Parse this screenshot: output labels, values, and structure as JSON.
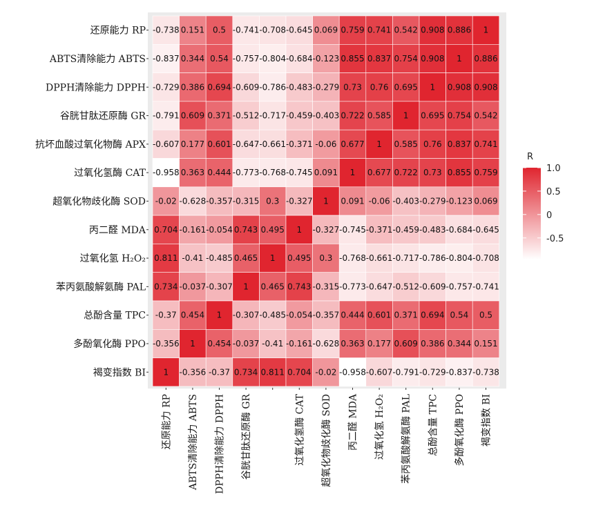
{
  "chart_data": {
    "type": "heatmap",
    "row_labels": [
      "还原能力 RP",
      "ABTS清除能力 ABTS",
      "DPPH清除能力 DPPH",
      "谷胱甘肽还原酶 GR",
      "抗坏血酸过氧化物酶 APX",
      "过氧化氢酶 CAT",
      "超氧化物歧化酶 SOD",
      "丙二醛 MDA",
      "过氧化氢 H₂O₂",
      "苯丙氨酸解氨酶 PAL",
      "总酚含量 TPC",
      "多酚氧化酶 PPO",
      "褐变指数 BI"
    ],
    "col_labels": [
      "还原能力 RP",
      "ABTS清除能力 ABTS",
      "DPPH清除能力 DPPH",
      "谷胱甘肽还原酶 GR",
      "",
      "过氧化氢酶 CAT",
      "超氧化物歧化酶 SOD",
      "丙二醛 MDA",
      "过氧化氢 H₂O₂",
      "苯丙氨酸解氨酶 PAL",
      "总酚含量 TPC",
      "多酚氧化酶 PPO",
      "褐变指数 BI"
    ],
    "cell_labels": [
      [
        "-0.738",
        "0.151",
        "0.5",
        "-0.741",
        "-0.708",
        "-0.645",
        "0.069",
        "0.759",
        "0.741",
        "0.542",
        "0.908",
        "0.886",
        "1"
      ],
      [
        "-0.837",
        "0.344",
        "0.54",
        "-0.757",
        "-0.804",
        "-0.684",
        "-0.123",
        "0.855",
        "0.837",
        "0.754",
        "0.908",
        "1",
        "0.886"
      ],
      [
        "-0.729",
        "0.386",
        "0.694",
        "-0.609",
        "-0.786",
        "-0.483",
        "-0.279",
        "0.73",
        "0.76",
        "0.695",
        "1",
        "0.908",
        "0.908"
      ],
      [
        "-0.791",
        "0.609",
        "0.371",
        "-0.512",
        "-0.717",
        "-0.459",
        "-0.403",
        "0.722",
        "0.585",
        "1",
        "0.695",
        "0.754",
        "0.542"
      ],
      [
        "-0.607",
        "0.177",
        "0.601",
        "-0.647",
        "-0.661",
        "-0.371",
        "-0.06",
        "0.677",
        "1",
        "0.585",
        "0.76",
        "0.837",
        "0.741"
      ],
      [
        "-0.958",
        "0.363",
        "0.444",
        "-0.773",
        "-0.768",
        "-0.745",
        "0.091",
        "1",
        "0.677",
        "0.722",
        "0.73",
        "0.855",
        "0.759"
      ],
      [
        "-0.02",
        "-0.628",
        "-0.357",
        "-0.315",
        "0.3",
        "-0.327",
        "1",
        "0.091",
        "-0.06",
        "-0.403",
        "-0.279",
        "-0.123",
        "0.069"
      ],
      [
        "0.704",
        "-0.161",
        "-0.054",
        "0.743",
        "0.495",
        "1",
        "-0.327",
        "-0.745",
        "-0.371",
        "-0.459",
        "-0.483",
        "-0.684",
        "-0.645"
      ],
      [
        "0.811",
        "-0.41",
        "-0.485",
        "0.465",
        "1",
        "0.495",
        "0.3",
        "-0.768",
        "-0.661",
        "-0.717",
        "-0.786",
        "-0.804",
        "-0.708"
      ],
      [
        "0.734",
        "-0.037",
        "-0.307",
        "1",
        "0.465",
        "0.743",
        "-0.315",
        "-0.773",
        "-0.647",
        "-0.512",
        "-0.609",
        "-0.757",
        "-0.741"
      ],
      [
        "-0.37",
        "0.454",
        "1",
        "-0.307",
        "-0.485",
        "-0.054",
        "-0.357",
        "0.444",
        "0.601",
        "0.371",
        "0.694",
        "0.54",
        "0.5"
      ],
      [
        "-0.356",
        "1",
        "0.454",
        "-0.037",
        "-0.41",
        "-0.161",
        "-0.628",
        "0.363",
        "0.177",
        "0.609",
        "0.386",
        "0.344",
        "0.151"
      ],
      [
        "1",
        "-0.356",
        "-0.37",
        "0.734",
        "0.811",
        "0.704",
        "-0.02",
        "-0.958",
        "-0.607",
        "-0.791",
        "-0.729",
        "-0.837",
        "-0.738"
      ]
    ],
    "color_low": "#ffffff",
    "color_high": "#e0252f",
    "value_range": [
      -0.96,
      1.0
    ],
    "legend": {
      "title": "R",
      "ticks": [
        "1.0",
        "0.5",
        "0",
        "-0.5"
      ],
      "tick_values": [
        1.0,
        0.5,
        0,
        -0.5
      ],
      "placement": "right"
    },
    "panel_background": "#ebebeb",
    "grid_color": "#ffffff"
  }
}
